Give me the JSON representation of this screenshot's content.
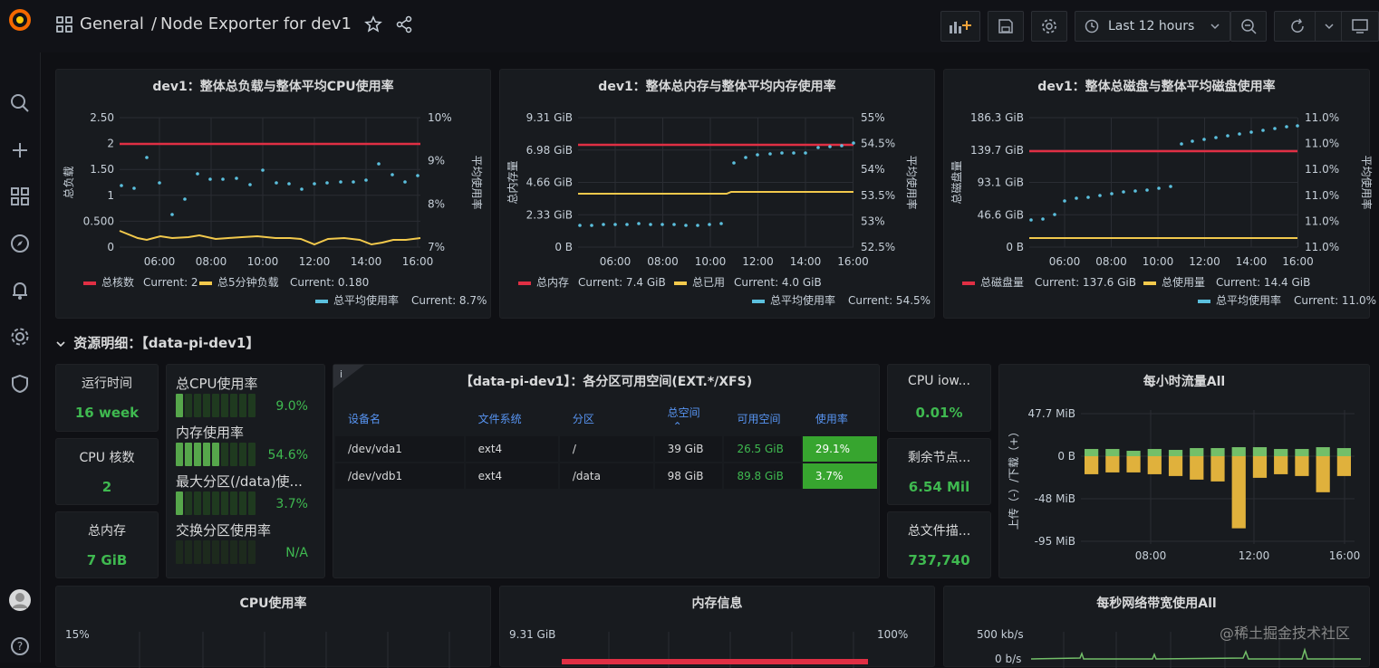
{
  "nav": {
    "breadcrumb_root": "General",
    "breadcrumb_sep": "/",
    "dashboard_title": "Node Exporter for dev1",
    "time_range": "Last 12 hours"
  },
  "colors": {
    "red": "#e02f44",
    "yellow": "#f2c94c",
    "cyan": "#5bc0de",
    "green": "#3fb950",
    "blue": "#5794f2"
  },
  "charts": {
    "cpu": {
      "title": "dev1：整体总负载与整体平均CPU使用率",
      "ylabel_left": "总负载",
      "ylabel_right": "平均使用率",
      "yticks_left": [
        "2.50",
        "2",
        "1.50",
        "1",
        "0.500",
        "0"
      ],
      "yticks_right": [
        "10%",
        "9%",
        "8%",
        "7%"
      ],
      "xticks": [
        "06:00",
        "08:00",
        "10:00",
        "12:00",
        "14:00",
        "16:00"
      ],
      "legend": [
        {
          "name": "总核数",
          "current": "Current: 2",
          "color": "#e02f44"
        },
        {
          "name": "总5分钟负载",
          "current": "Current: 0.180",
          "color": "#f2c94c"
        },
        {
          "name": "总平均使用率",
          "current": "Current: 8.7%",
          "color": "#5bc0de"
        }
      ]
    },
    "mem": {
      "title": "dev1：整体总内存与整体平均内存使用率",
      "ylabel_left": "总内存量",
      "ylabel_right": "平均使用率",
      "yticks_left": [
        "9.31 GiB",
        "6.98 GiB",
        "4.66 GiB",
        "2.33 GiB",
        "0 B"
      ],
      "yticks_right": [
        "55%",
        "54.5%",
        "54%",
        "53.5%",
        "53%",
        "52.5%"
      ],
      "xticks": [
        "06:00",
        "08:00",
        "10:00",
        "12:00",
        "14:00",
        "16:00"
      ],
      "legend": [
        {
          "name": "总内存",
          "current": "Current: 7.4 GiB",
          "color": "#e02f44"
        },
        {
          "name": "总已用",
          "current": "Current: 4.0 GiB",
          "color": "#f2c94c"
        },
        {
          "name": "总平均使用率",
          "current": "Current: 54.5%",
          "color": "#5bc0de"
        }
      ]
    },
    "disk": {
      "title": "dev1：整体总磁盘与整体平均磁盘使用率",
      "ylabel_left": "总磁盘量",
      "ylabel_right": "平均使用率",
      "yticks_left": [
        "186.3 GiB",
        "139.7 GiB",
        "93.1 GiB",
        "46.6 GiB",
        "0 B"
      ],
      "yticks_right": [
        "11.0%",
        "11.0%",
        "11.0%",
        "11.0%",
        "11.0%",
        "11.0%"
      ],
      "xticks": [
        "06:00",
        "08:00",
        "10:00",
        "12:00",
        "14:00",
        "16:00"
      ],
      "legend": [
        {
          "name": "总磁盘量",
          "current": "Current: 137.6 GiB",
          "color": "#e02f44"
        },
        {
          "name": "总使用量",
          "current": "Current: 14.4 GiB",
          "color": "#f2c94c"
        },
        {
          "name": "总平均使用率",
          "current": "Current: 11.0%",
          "color": "#5bc0de"
        }
      ]
    }
  },
  "row": {
    "title": "资源明细：【data-pi-dev1】"
  },
  "stats": {
    "uptime": {
      "title": "运行时间",
      "value": "16 week"
    },
    "cpu_cores": {
      "title": "CPU 核数",
      "value": "2"
    },
    "total_mem": {
      "title": "总内存",
      "value": "7 GiB"
    },
    "cpu_iowait": {
      "title": "CPU iow...",
      "value": "0.01%"
    },
    "free_nodes": {
      "title": "剩余节点...",
      "value": "6.54 Mil"
    },
    "file_desc": {
      "title": "总文件描...",
      "value": "737,740"
    }
  },
  "gauges": [
    {
      "label": "总CPU使用率",
      "value": "9.0%",
      "level": 0.09
    },
    {
      "label": "内存使用率",
      "value": "54.6%",
      "level": 0.546
    },
    {
      "label": "最大分区(/data)使...",
      "value": "3.7%",
      "level": 0.037
    },
    {
      "label": "交换分区使用率",
      "value": "N/A",
      "level": 0
    }
  ],
  "partitions": {
    "title": "【data-pi-dev1】：各分区可用空间(EXT.*/XFS)",
    "columns": [
      "设备名",
      "文件系统",
      "分区",
      "总空间",
      "可用空间",
      "使用率"
    ],
    "sort_indicator": "⌃",
    "rows": [
      [
        "/dev/vda1",
        "ext4",
        "/",
        "39 GiB",
        "26.5 GiB",
        "29.1%"
      ],
      [
        "/dev/vdb1",
        "ext4",
        "/data",
        "98 GiB",
        "89.8 GiB",
        "3.7%"
      ]
    ]
  },
  "traffic": {
    "title": "每小时流量All",
    "ylabel": "上传（-）/下载（+）",
    "yticks": [
      "47.7 MiB",
      "0 B",
      "-48 MiB",
      "-95 MiB"
    ],
    "xticks": [
      "08:00",
      "12:00",
      "16:00"
    ],
    "up_mib": [
      8,
      8,
      6,
      8,
      7,
      9,
      9,
      10,
      10,
      8,
      8,
      10,
      9
    ],
    "down_mib": [
      -20,
      -18,
      -18,
      -20,
      -22,
      -26,
      -28,
      -80,
      -24,
      -20,
      -22,
      -40,
      -22
    ]
  },
  "bottom": {
    "cpu_title": "CPU使用率",
    "cpu_ytick": "15%",
    "mem_title": "内存信息",
    "mem_ytick_left": "9.31 GiB",
    "mem_ytick_right": "100%",
    "net_title": "每秒网络带宽使用All",
    "net_ytick": "500 kb/s",
    "net_ytick2": "0 b/s"
  },
  "watermark": "@稀土掘金技术社区"
}
